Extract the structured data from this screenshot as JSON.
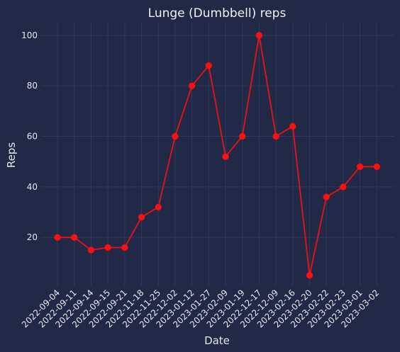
{
  "chart_data": {
    "type": "line",
    "title": "Lunge (Dumbbell) reps",
    "xlabel": "Date",
    "ylabel": "Reps",
    "categories": [
      "2022-09-04",
      "2022-09-11",
      "2022-09-14",
      "2022-09-15",
      "2022-09-21",
      "2022-11-18",
      "2022-11-25",
      "2022-12-02",
      "2023-01-12",
      "2023-01-27",
      "2023-02-09",
      "2023-01-19",
      "2022-12-17",
      "2022-12-09",
      "2023-02-16",
      "2023-02-20",
      "2023-02-22",
      "2023-02-23",
      "2023-03-01",
      "2023-03-02"
    ],
    "series": [
      {
        "values": [
          20,
          20,
          15,
          16,
          16,
          28,
          32,
          60,
          80,
          88,
          52,
          60,
          100,
          60,
          64,
          5,
          36,
          40,
          48,
          48
        ]
      }
    ],
    "yticks": [
      20,
      40,
      60,
      80,
      100
    ],
    "ylim": [
      1,
      105
    ],
    "grid": true,
    "line_color": "#ee1111",
    "marker_color": "#ff1010"
  }
}
